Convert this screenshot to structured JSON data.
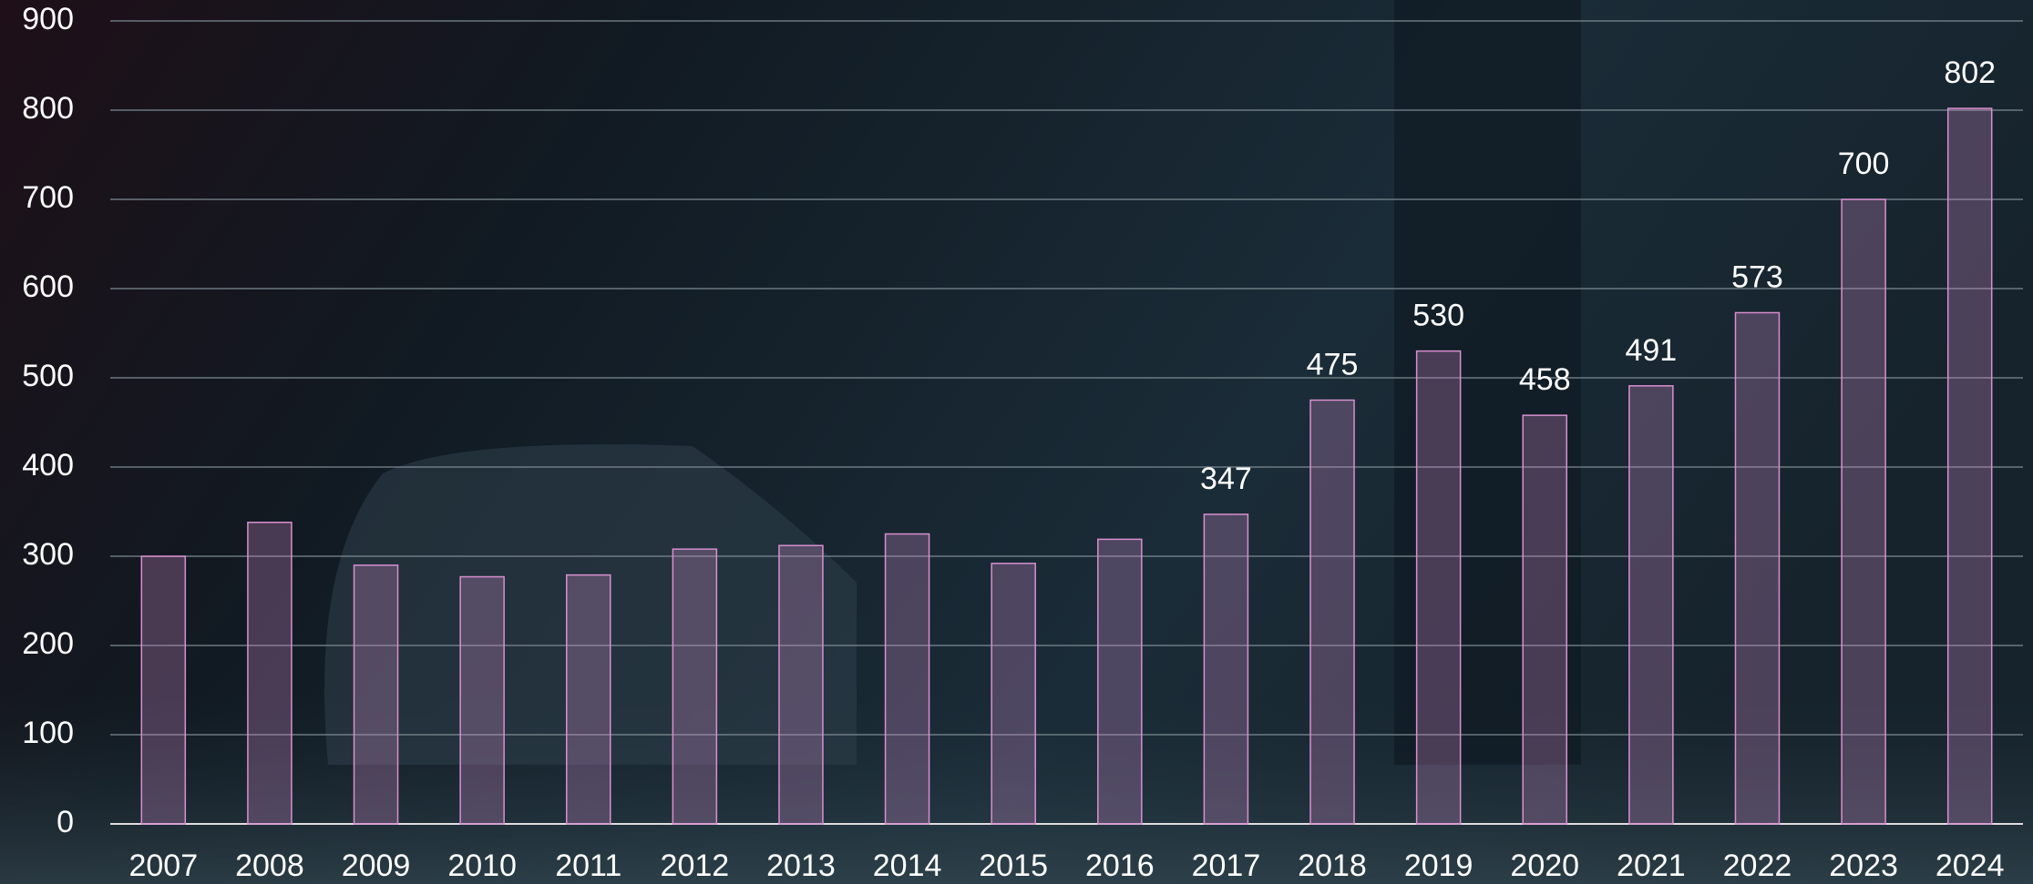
{
  "chart_data": {
    "type": "bar",
    "categories": [
      "2007",
      "2008",
      "2009",
      "2010",
      "2011",
      "2012",
      "2013",
      "2014",
      "2015",
      "2016",
      "2017",
      "2018",
      "2019",
      "2020",
      "2021",
      "2022",
      "2023",
      "2024"
    ],
    "values": [
      300,
      338,
      290,
      277,
      279,
      308,
      312,
      325,
      292,
      319,
      347,
      475,
      530,
      458,
      491,
      573,
      700,
      802
    ],
    "value_labels": [
      null,
      null,
      null,
      null,
      null,
      null,
      null,
      null,
      null,
      null,
      "347",
      "475",
      "530",
      "458",
      "491",
      "573",
      "700",
      "802"
    ],
    "color": "#d98fd0",
    "ylim": [
      0,
      900
    ],
    "yticks": [
      0,
      100,
      200,
      300,
      400,
      500,
      600,
      700,
      800,
      900
    ],
    "grid": true
  }
}
